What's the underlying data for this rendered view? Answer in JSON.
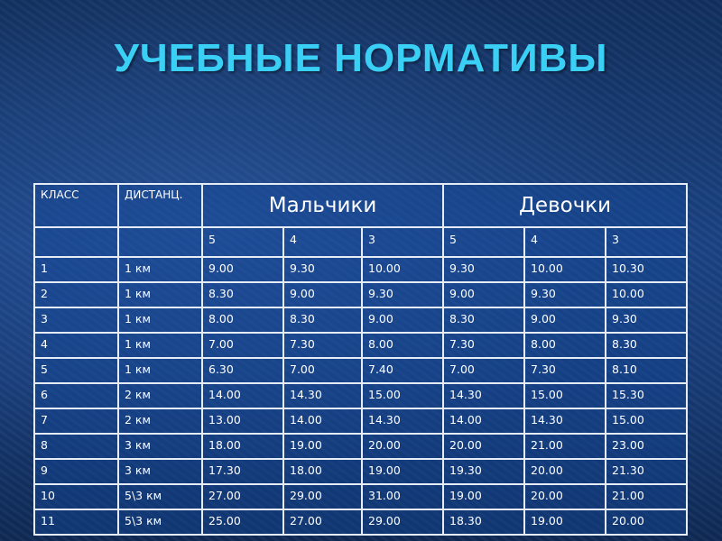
{
  "title": "УЧЕБНЫЕ НОРМАТИВЫ",
  "table": {
    "col_class": "КЛАСС",
    "col_distance": "ДИСТАНЦ.",
    "group_boys": "Мальчики",
    "group_girls": "Девочки",
    "grades": [
      "5",
      "4",
      "3",
      "5",
      "4",
      "3"
    ],
    "rows": [
      [
        "1",
        "1 км",
        "9.00",
        "9.30",
        "10.00",
        "9.30",
        "10.00",
        "10.30"
      ],
      [
        "2",
        "1 км",
        "8.30",
        "9.00",
        "9.30",
        "9.00",
        "9.30",
        "10.00"
      ],
      [
        "3",
        "1 км",
        "8.00",
        "8.30",
        "9.00",
        "8.30",
        "9.00",
        "9.30"
      ],
      [
        "4",
        "1 км",
        "7.00",
        "7.30",
        "8.00",
        "7.30",
        "8.00",
        "8.30"
      ],
      [
        "5",
        "1 км",
        "6.30",
        "7.00",
        "7.40",
        "7.00",
        "7.30",
        "8.10"
      ],
      [
        "6",
        "2 км",
        "14.00",
        "14.30",
        "15.00",
        "14.30",
        "15.00",
        "15.30"
      ],
      [
        "7",
        "2 км",
        "13.00",
        "14.00",
        "14.30",
        "14.00",
        "14.30",
        "15.00"
      ],
      [
        "8",
        "3 км",
        "18.00",
        "19.00",
        "20.00",
        "20.00",
        "21.00",
        "23.00"
      ],
      [
        "9",
        "3 км",
        "17.30",
        "18.00",
        "19.00",
        "19.30",
        "20.00",
        "21.30"
      ],
      [
        "10",
        "5\\3 км",
        "27.00",
        "29.00",
        "31.00",
        "19.00",
        "20.00",
        "21.00"
      ],
      [
        "11",
        "5\\3 км",
        "25.00",
        "27.00",
        "29.00",
        "18.30",
        "19.00",
        "20.00"
      ]
    ]
  },
  "colors": {
    "title": "#3ad0f5",
    "background": "#1b4384",
    "grid": "#e6ecf5"
  }
}
